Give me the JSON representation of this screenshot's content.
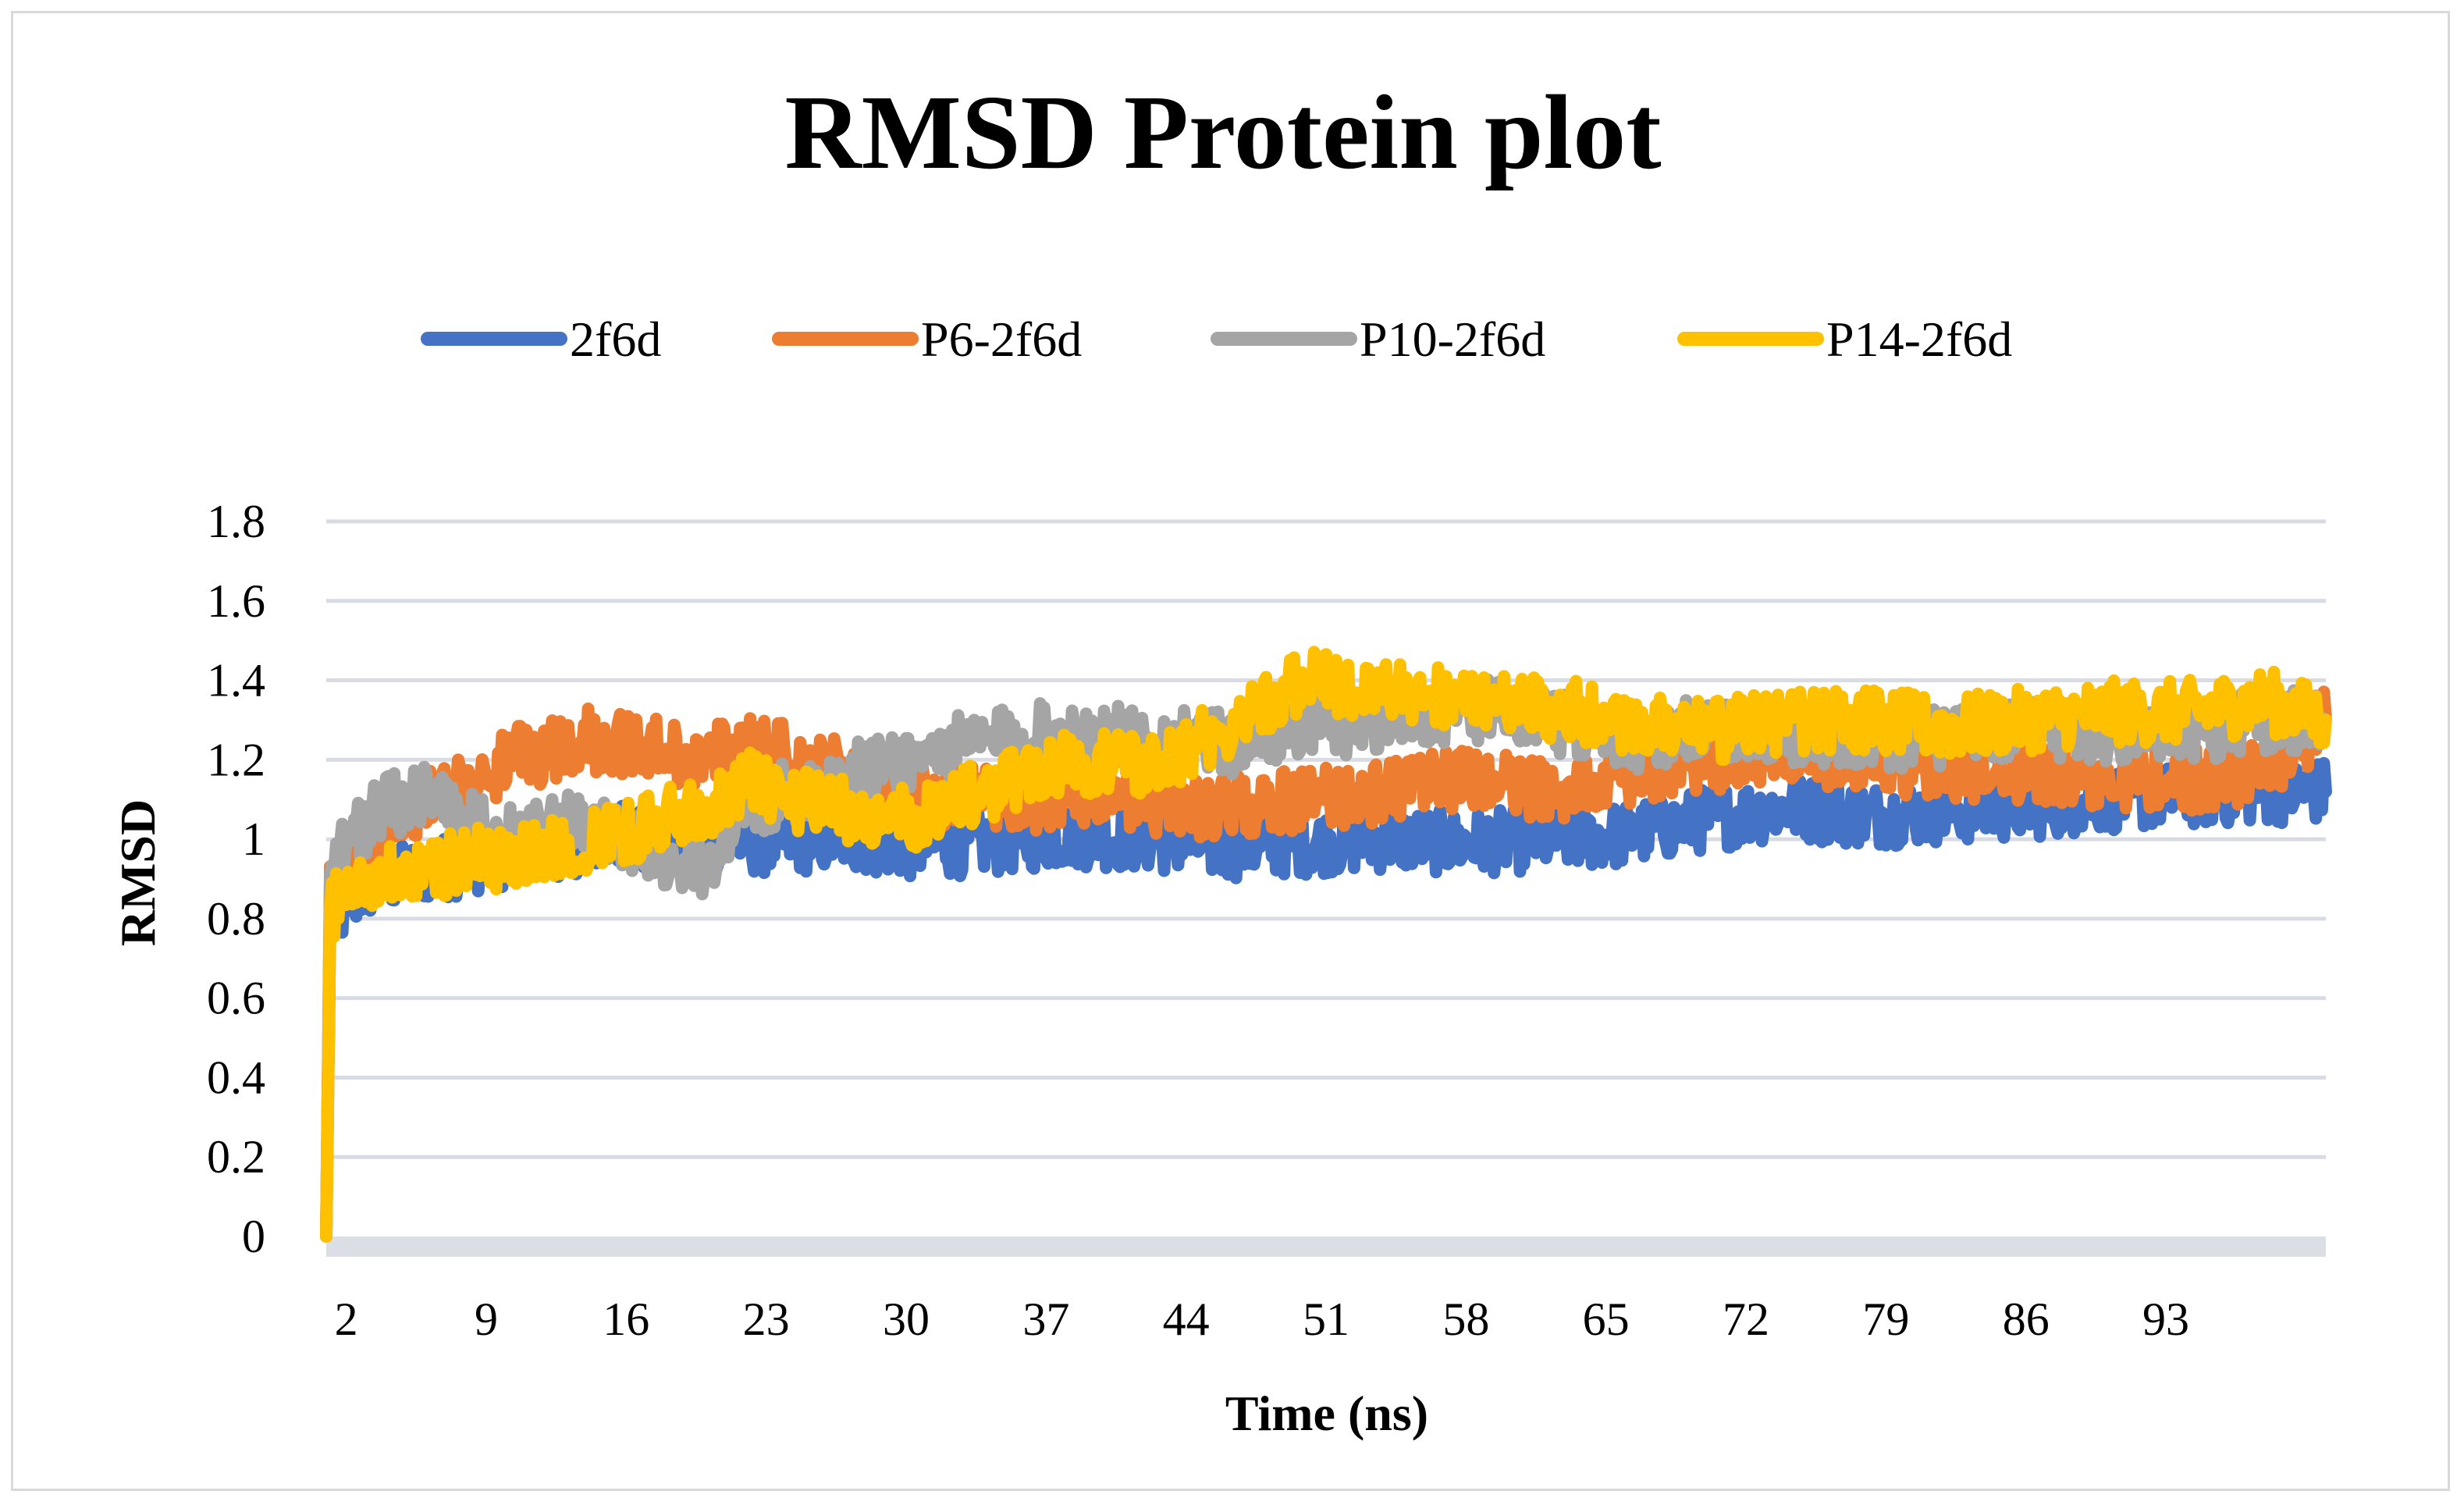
{
  "chart_data": {
    "type": "line",
    "title": "RMSD Protein plot",
    "xlabel": "Time (ns)",
    "ylabel": "RMSD",
    "ylim": [
      0,
      1.8
    ],
    "y_ticks": [
      "0",
      "0.2",
      "0.4",
      "0.6",
      "0.8",
      "1",
      "1.2",
      "1.4",
      "1.6",
      "1.8"
    ],
    "x_tick_labels": [
      "2",
      "9",
      "16",
      "23",
      "30",
      "37",
      "44",
      "51",
      "58",
      "65",
      "72",
      "79",
      "86",
      "93"
    ],
    "x_range": [
      1,
      101
    ],
    "legend_position": "top",
    "series": [
      {
        "name": "2f6d",
        "color": "#4472C4",
        "x": [
          1,
          1.2,
          2,
          3,
          5,
          7,
          9,
          12,
          16,
          20,
          23,
          27,
          30,
          34,
          38,
          42,
          46,
          50,
          54,
          58,
          62,
          66,
          70,
          74,
          78,
          82,
          86,
          90,
          94,
          98,
          101
        ],
        "values": [
          0,
          0.78,
          0.83,
          0.88,
          0.91,
          0.93,
          0.95,
          0.98,
          1.01,
          1.0,
          0.99,
          1.0,
          0.98,
          0.99,
          1.01,
          1.0,
          0.98,
          0.99,
          1.0,
          0.99,
          1.0,
          1.01,
          1.05,
          1.08,
          1.06,
          1.07,
          1.08,
          1.1,
          1.11,
          1.12,
          1.12
        ]
      },
      {
        "name": "P6-2f6d",
        "color": "#ED7D31",
        "x": [
          1,
          1.2,
          2,
          4,
          6,
          8,
          10,
          12,
          14,
          16,
          18,
          20,
          22,
          24,
          26,
          30,
          34,
          38,
          42,
          46,
          50,
          54,
          58,
          62,
          66,
          70,
          74,
          78,
          82,
          86,
          90,
          94,
          98,
          101
        ],
        "values": [
          0,
          0.86,
          0.92,
          1.05,
          1.1,
          1.13,
          1.2,
          1.22,
          1.25,
          1.24,
          1.22,
          1.2,
          1.25,
          1.22,
          1.18,
          1.12,
          1.1,
          1.1,
          1.09,
          1.08,
          1.1,
          1.12,
          1.15,
          1.12,
          1.15,
          1.2,
          1.22,
          1.2,
          1.18,
          1.17,
          1.16,
          1.15,
          1.17,
          1.3
        ]
      },
      {
        "name": "P10-2f6d",
        "color": "#A5A5A5",
        "x": [
          1,
          1.2,
          2,
          4,
          6,
          8,
          10,
          12,
          14,
          16,
          18,
          20,
          22,
          26,
          30,
          34,
          38,
          42,
          46,
          50,
          54,
          58,
          62,
          66,
          70,
          74,
          78,
          82,
          86,
          90,
          94,
          98,
          101
        ],
        "values": [
          0,
          0.95,
          1.0,
          1.08,
          1.12,
          1.05,
          1.0,
          1.02,
          1.05,
          1.0,
          0.95,
          0.93,
          1.08,
          1.15,
          1.2,
          1.25,
          1.27,
          1.25,
          1.24,
          1.28,
          1.3,
          1.33,
          1.3,
          1.25,
          1.28,
          1.27,
          1.25,
          1.26,
          1.28,
          1.27,
          1.27,
          1.3,
          1.3
        ]
      },
      {
        "name": "P14-2f6d",
        "color": "#FFC000",
        "x": [
          1,
          1.2,
          2,
          4,
          6,
          8,
          10,
          12,
          14,
          16,
          18,
          20,
          22,
          24,
          26,
          30,
          34,
          38,
          42,
          46,
          48,
          50,
          52,
          54,
          58,
          62,
          66,
          70,
          74,
          78,
          82,
          86,
          90,
          94,
          98,
          101
        ],
        "values": [
          0,
          0.82,
          0.88,
          0.9,
          0.92,
          0.95,
          0.95,
          0.97,
          1.0,
          1.02,
          1.05,
          1.08,
          1.15,
          1.1,
          1.08,
          1.05,
          1.12,
          1.2,
          1.18,
          1.28,
          1.35,
          1.4,
          1.38,
          1.37,
          1.35,
          1.33,
          1.3,
          1.27,
          1.3,
          1.3,
          1.28,
          1.3,
          1.32,
          1.32,
          1.35,
          1.3
        ]
      }
    ]
  }
}
